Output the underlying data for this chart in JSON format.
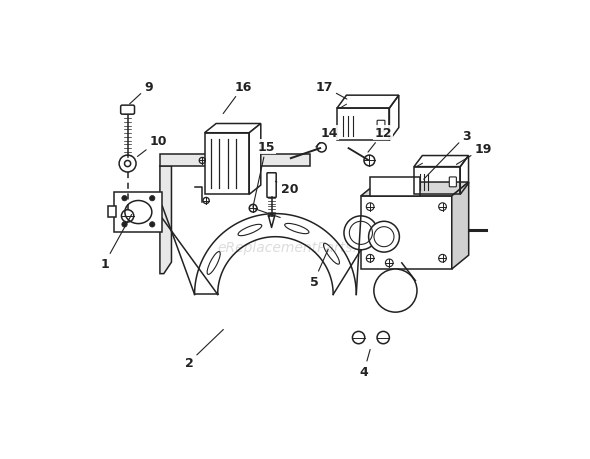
{
  "bg_color": "#ffffff",
  "line_color": "#222222",
  "lw": 1.1,
  "watermark_text": "eReplacementParts.com",
  "watermark_color": "#bbbbbb",
  "watermark_alpha": 0.5,
  "watermark_fontsize": 10,
  "figsize": [
    5.9,
    4.6
  ],
  "dpi": 100
}
